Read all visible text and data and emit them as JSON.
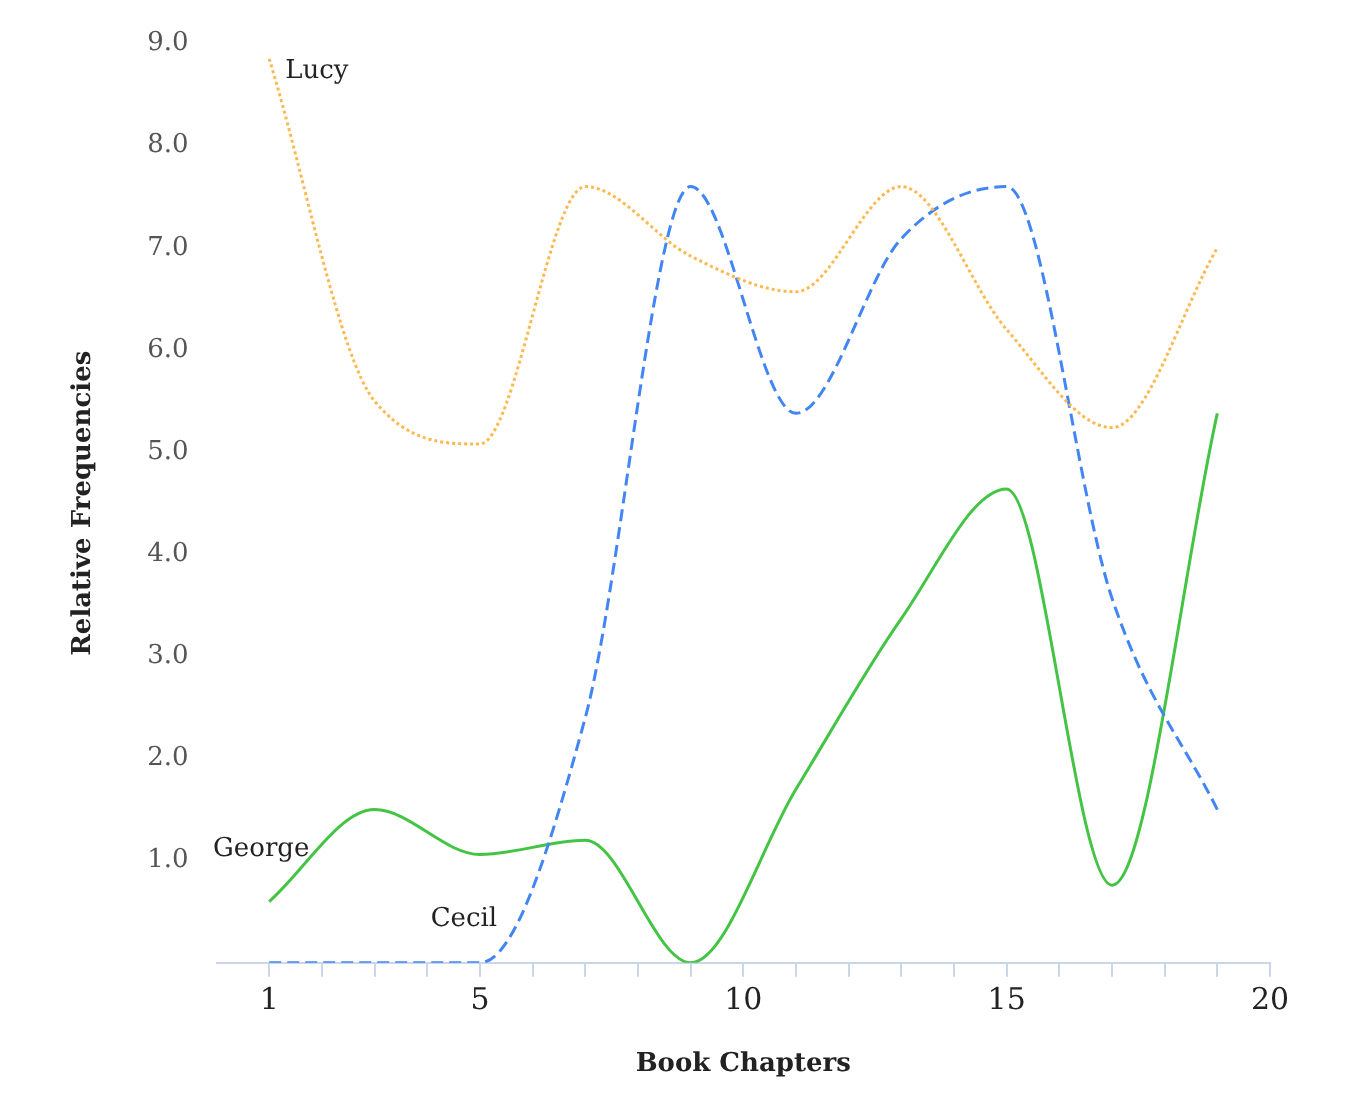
{
  "chart_data": {
    "type": "line",
    "xlabel": "Book Chapters",
    "ylabel": "Relative Frequencies",
    "x": [
      1,
      3,
      5,
      7,
      9,
      11,
      13,
      15,
      17,
      19
    ],
    "series": [
      {
        "name": "Lucy",
        "color": "#ffb84d",
        "line_style": "dotted",
        "values": [
          8.85,
          5.5,
          5.08,
          7.6,
          6.92,
          6.57,
          7.6,
          6.2,
          5.24,
          7.0
        ]
      },
      {
        "name": "Cecil",
        "color": "#4285f4",
        "line_style": "dashed",
        "values": [
          0,
          0,
          0,
          2.4,
          7.6,
          5.38,
          7.09,
          7.6,
          3.57,
          1.5
        ]
      },
      {
        "name": "George",
        "color": "#44c444",
        "line_style": "solid",
        "values": [
          0.6,
          1.5,
          1.06,
          1.2,
          0,
          1.7,
          3.37,
          4.64,
          0.76,
          5.38
        ]
      }
    ],
    "xlim": [
      0,
      20
    ],
    "xticks": [
      1,
      {
        "value": 2,
        "label": null
      },
      {
        "value": 3,
        "label": null
      },
      {
        "value": 4,
        "label": null
      },
      5,
      {
        "value": 6,
        "label": null
      },
      {
        "value": 7,
        "label": null
      },
      {
        "value": 8,
        "label": null
      },
      {
        "value": 9,
        "label": null
      },
      10,
      {
        "value": 11,
        "label": null
      },
      {
        "value": 12,
        "label": null
      },
      {
        "value": 13,
        "label": null
      },
      {
        "value": 14,
        "label": null
      },
      15,
      {
        "value": 16,
        "label": null
      },
      {
        "value": 17,
        "label": null
      },
      {
        "value": 18,
        "label": null
      },
      {
        "value": 19,
        "label": null
      },
      20
    ],
    "ylim": [
      0,
      9
    ],
    "yticks": [
      {
        "value": 1,
        "label": "1.0"
      },
      {
        "value": 2,
        "label": "2.0"
      },
      {
        "value": 3,
        "label": "3.0"
      },
      {
        "value": 4,
        "label": "4.0"
      },
      {
        "value": 5,
        "label": "5.0"
      },
      {
        "value": 6,
        "label": "6.0"
      },
      {
        "value": 7,
        "label": "7.0"
      },
      {
        "value": 8,
        "label": "8.0"
      },
      {
        "value": 9,
        "label": "9.0"
      }
    ],
    "grid": false,
    "legend": false,
    "marker": "none"
  }
}
